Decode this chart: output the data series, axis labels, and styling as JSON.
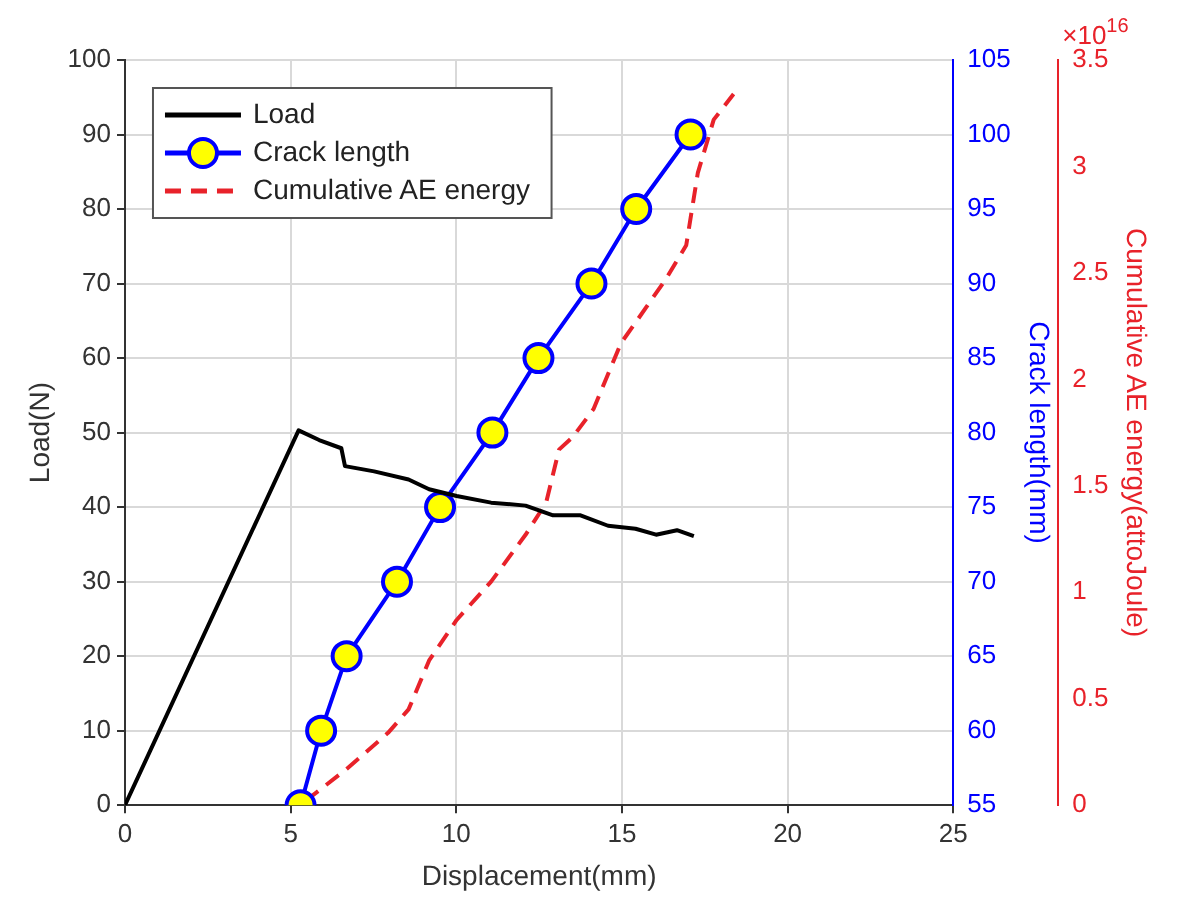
{
  "chart_data": {
    "type": "line",
    "xlabel": "Displacement(mm)",
    "ylabel": "Load(N)",
    "y2label": "Crack length(mm)",
    "y3label": "Cumulative AE energy(attoJoule)",
    "xlim": [
      0,
      25
    ],
    "xticks": [
      0,
      5,
      10,
      15,
      20,
      25
    ],
    "ylim": [
      0,
      100
    ],
    "yticks": [
      0,
      10,
      20,
      30,
      40,
      50,
      60,
      70,
      80,
      90,
      100
    ],
    "y2lim": [
      55,
      105
    ],
    "y2ticks": [
      55,
      60,
      65,
      70,
      75,
      80,
      85,
      90,
      95,
      100,
      105
    ],
    "y3lim": [
      0,
      3.5
    ],
    "y3ticks": [
      0,
      0.5,
      1,
      1.5,
      2,
      2.5,
      3,
      3.5
    ],
    "annotations": [
      "×10$^{16}$"
    ],
    "grid": true,
    "legend": "top left",
    "series": [
      {
        "name": "Load",
        "color": "#000000",
        "axis": "y",
        "marker": "none",
        "line_style": "solid",
        "x": [
          0,
          5.24,
          5.86,
          6.53,
          6.64,
          7.52,
          8.56,
          9.18,
          10.01,
          11.05,
          12.09,
          12.92,
          13.75,
          14.58,
          15.41,
          16.03,
          16.66,
          17.17
        ],
        "values": [
          0,
          50.3,
          49,
          47.9,
          45.5,
          44.8,
          43.7,
          42.4,
          41.5,
          40.6,
          40.2,
          38.9,
          38.9,
          37.5,
          37.1,
          36.3,
          36.9,
          36.1
        ]
      },
      {
        "name": "Crack length",
        "color": "#0000ff",
        "axis": "y2",
        "marker": "circle",
        "line_style": "solid",
        "x": [
          5.3,
          5.92,
          6.69,
          8.21,
          9.51,
          11.09,
          12.48,
          14.08,
          15.43,
          17.07
        ],
        "values": [
          55,
          60,
          65,
          70,
          75,
          80,
          85,
          90,
          95,
          100
        ]
      },
      {
        "name": "Cumulative AE energy",
        "color": "#e8222a",
        "axis": "y3",
        "marker": "none",
        "line_style": "dashed",
        "x": [
          5.45,
          6.69,
          7.94,
          8.56,
          9.18,
          10.01,
          11.05,
          12.09,
          12.71,
          13.1,
          13.52,
          14.14,
          14.97,
          15.38,
          16.32,
          16.94,
          17.29,
          17.77,
          18.37
        ],
        "values": [
          0.02,
          0.17,
          0.34,
          0.45,
          0.68,
          0.87,
          1.05,
          1.27,
          1.42,
          1.67,
          1.73,
          1.86,
          2.17,
          2.26,
          2.47,
          2.63,
          2.97,
          3.22,
          3.34
        ]
      }
    ]
  }
}
